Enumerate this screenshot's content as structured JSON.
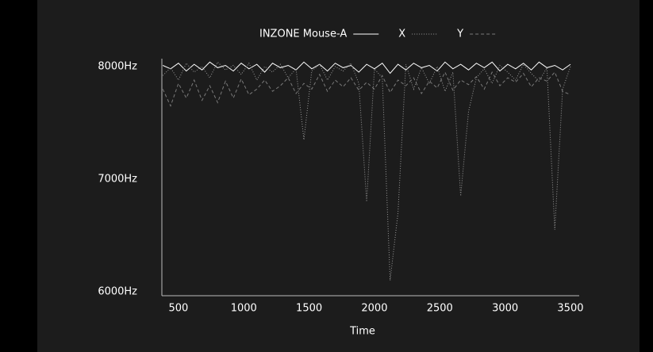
{
  "chart_data": {
    "type": "line",
    "x_label": "Time",
    "x": [
      380,
      440,
      500,
      560,
      620,
      680,
      740,
      800,
      860,
      920,
      980,
      1040,
      1100,
      1160,
      1220,
      1280,
      1340,
      1400,
      1460,
      1520,
      1580,
      1640,
      1700,
      1760,
      1820,
      1880,
      1940,
      2000,
      2060,
      2120,
      2180,
      2240,
      2300,
      2360,
      2420,
      2480,
      2540,
      2600,
      2660,
      2720,
      2780,
      2840,
      2900,
      2960,
      3020,
      3080,
      3140,
      3200,
      3260,
      3320,
      3380,
      3440,
      3500
    ],
    "series": [
      {
        "name": "INZONE Mouse-A",
        "color": "#ffffff",
        "line_style": "solid",
        "values": [
          8010,
          7980,
          8030,
          7960,
          8020,
          7970,
          8040,
          7990,
          8010,
          7960,
          8030,
          7980,
          8020,
          7950,
          8030,
          7990,
          8010,
          7970,
          8040,
          7980,
          8020,
          7960,
          8030,
          7990,
          8010,
          7950,
          8020,
          7980,
          8030,
          7940,
          8020,
          7970,
          8030,
          7990,
          8010,
          7960,
          8040,
          7980,
          8020,
          7970,
          8030,
          7990,
          8040,
          7960,
          8020,
          7980,
          8030,
          7970,
          8040,
          7990,
          8010,
          7970,
          8020
        ]
      },
      {
        "name": "X",
        "color": "#9a9a9a",
        "line_style": "dotted",
        "values": [
          7920,
          7990,
          7880,
          8030,
          7950,
          8000,
          7900,
          8040,
          7970,
          8010,
          7930,
          8030,
          7880,
          8000,
          7950,
          8020,
          7900,
          7980,
          7350,
          7960,
          8020,
          7880,
          8000,
          7960,
          8030,
          7850,
          6800,
          7980,
          7900,
          6100,
          6700,
          8020,
          7800,
          7990,
          7850,
          8000,
          7780,
          7950,
          6850,
          7600,
          7900,
          7980,
          7850,
          8010,
          7950,
          7880,
          8020,
          7940,
          7870,
          7990,
          6550,
          7800,
          8000
        ]
      },
      {
        "name": "Y",
        "color": "#7a7a7a",
        "line_style": "dashed",
        "values": [
          7800,
          7650,
          7850,
          7720,
          7880,
          7700,
          7830,
          7680,
          7870,
          7720,
          7890,
          7750,
          7800,
          7880,
          7780,
          7830,
          7900,
          7760,
          7850,
          7800,
          7930,
          7780,
          7880,
          7820,
          7900,
          7790,
          7860,
          7800,
          7920,
          7770,
          7880,
          7830,
          7900,
          7760,
          7870,
          7810,
          7950,
          7790,
          7880,
          7840,
          7910,
          7800,
          7950,
          7830,
          7900,
          7860,
          7940,
          7820,
          7900,
          7870,
          7950,
          7780,
          7750
        ]
      }
    ],
    "xlim": [
      373,
      3567
    ],
    "ylim": [
      5965,
      8070
    ],
    "xticks": [
      500,
      1000,
      1500,
      2000,
      2500,
      3000,
      3500
    ],
    "yticks": [
      {
        "value": 6000,
        "label": "6000Hz"
      },
      {
        "value": 7000,
        "label": "7000Hz"
      },
      {
        "value": 8000,
        "label": "8000Hz"
      }
    ],
    "legend": "top"
  }
}
